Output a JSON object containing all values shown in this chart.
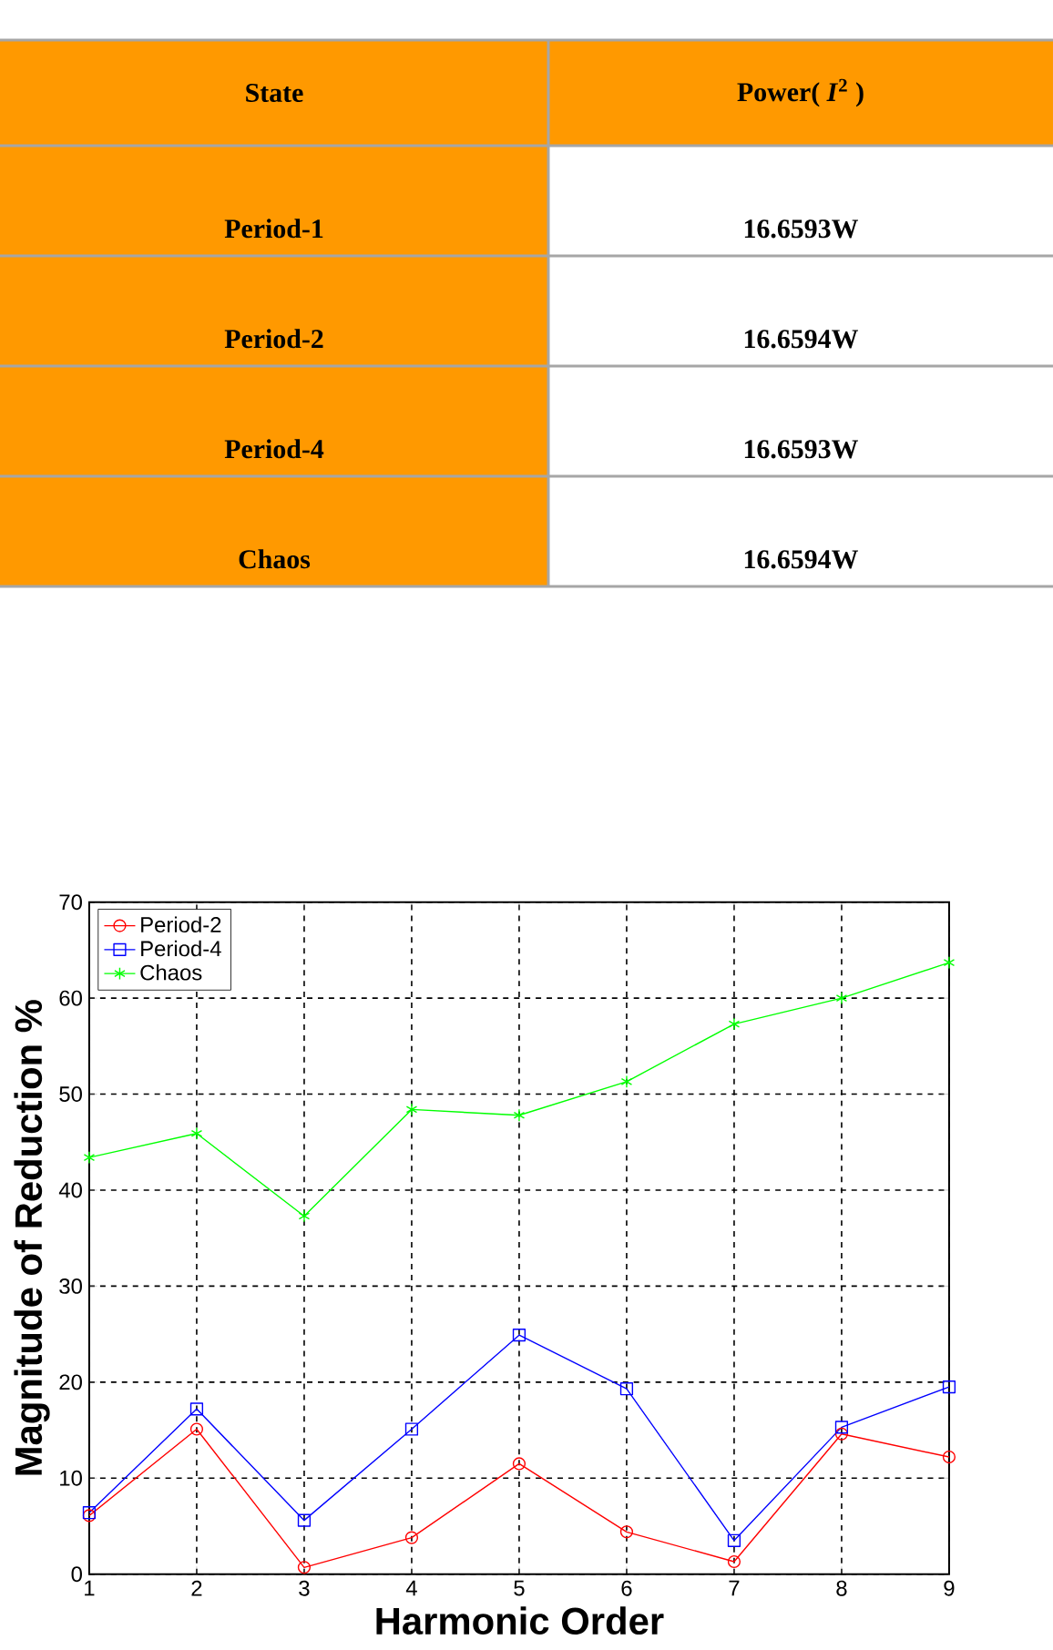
{
  "chart_data": [
    {
      "type": "other",
      "color": "#ff9900",
      "annotations": [
        "State",
        "Power( *I*$^{2}$ )",
        "Period-1",
        "16.6593W",
        "Period-2",
        "16.6594W",
        "Period-4",
        "16.6593W",
        "Chaos",
        "16.6594W"
      ]
    },
    {
      "type": "line",
      "xlabel": "Harmonic Order",
      "ylabel": "Magnitude of Reduction %",
      "x": [
        1,
        2,
        3,
        4,
        5,
        6,
        7,
        8,
        9
      ],
      "series": [
        {
          "name": "Period-2",
          "color": "#ff0000",
          "marker": "circle",
          "values": [
            6.1,
            15.1,
            0.7,
            3.8,
            11.5,
            4.4,
            1.3,
            14.6,
            12.2
          ]
        },
        {
          "name": "Period-4",
          "color": "#0000ff",
          "marker": "square",
          "values": [
            6.4,
            17.2,
            5.6,
            15.1,
            24.9,
            19.3,
            3.5,
            15.3,
            19.5
          ]
        },
        {
          "name": "Chaos",
          "color": "#00ff00",
          "marker": "cross",
          "values": [
            43.4,
            45.9,
            37.3,
            48.4,
            47.8,
            51.3,
            57.3,
            60.0,
            63.7
          ]
        }
      ],
      "xlim": [
        1,
        9
      ],
      "ylim": [
        0,
        70
      ],
      "xticks": [
        1,
        2,
        3,
        4,
        5,
        6,
        7,
        8,
        9
      ],
      "yticks": [
        0,
        10,
        20,
        30,
        40,
        50,
        60,
        70
      ],
      "grid": true,
      "legend": "top left",
      "line_style": "solid"
    }
  ]
}
